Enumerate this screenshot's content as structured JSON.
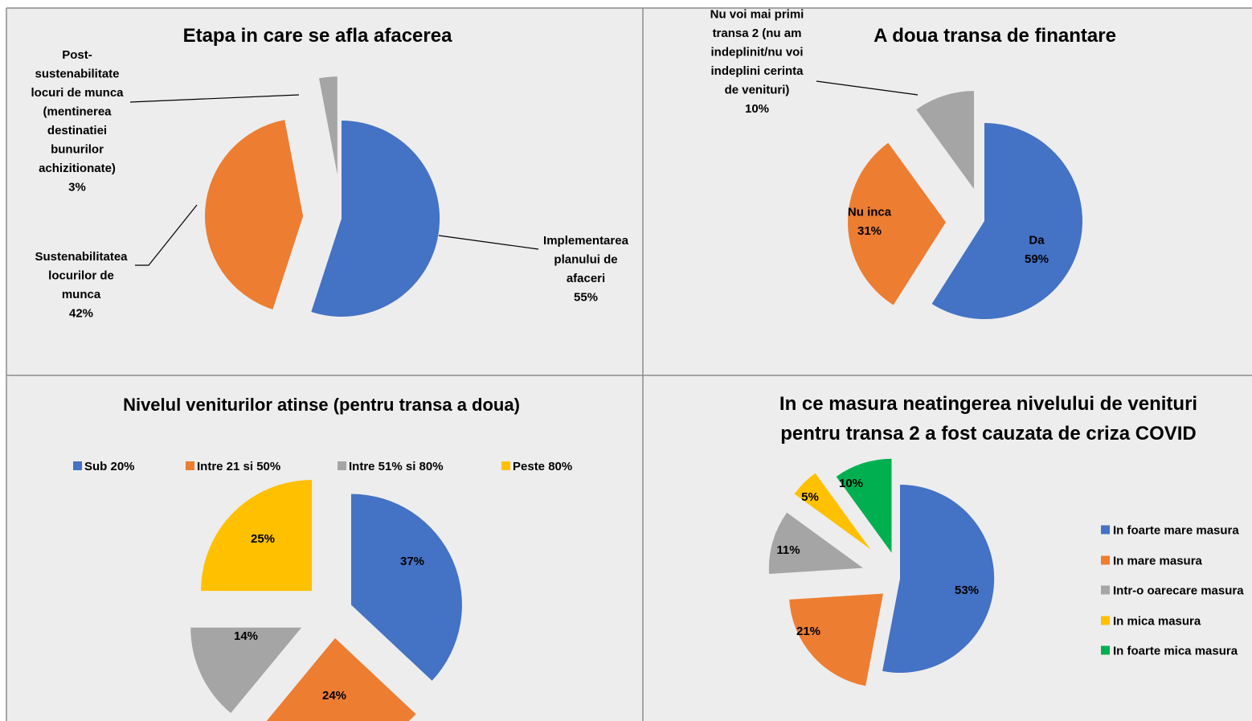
{
  "colors": {
    "blue": "#4472C4",
    "orange": "#ED7D31",
    "gray": "#A5A5A5",
    "yellow": "#FFC000",
    "green": "#00B050",
    "panel_bg": "#EDEDED",
    "border": "#8C8C8C"
  },
  "chart_data": [
    {
      "type": "pie",
      "title": "Etapa in care se afla afacerea",
      "slices": [
        {
          "label": [
            "Implementarea",
            "planului de",
            "afaceri",
            "55%"
          ],
          "value": 55,
          "color": "#4472C4"
        },
        {
          "label": [
            "Sustenabilitatea",
            "locurilor de",
            "munca",
            "42%"
          ],
          "value": 42,
          "color": "#ED7D31"
        },
        {
          "label": [
            "Post-",
            "sustenabilitate",
            "locuri de munca",
            "(mentinerea",
            "destinatiei",
            "bunurilor",
            "achizitionate)",
            "3%"
          ],
          "value": 3,
          "color": "#A5A5A5"
        }
      ]
    },
    {
      "type": "pie",
      "title": "A doua transa de finantare",
      "slices": [
        {
          "label": [
            "Da",
            "59%"
          ],
          "value": 59,
          "color": "#4472C4"
        },
        {
          "label": [
            "Nu inca",
            "31%"
          ],
          "value": 31,
          "color": "#ED7D31"
        },
        {
          "label": [
            "Nu voi mai primi",
            "transa 2 (nu am",
            "indeplinit/nu voi",
            "indeplini cerinta",
            "de venituri)",
            "10%"
          ],
          "value": 10,
          "color": "#A5A5A5"
        }
      ]
    },
    {
      "type": "pie",
      "title": "Nivelul veniturilor atinse (pentru transa a doua)",
      "legend": [
        "Sub 20%",
        "Intre 21 si 50%",
        "Intre 51% si 80%",
        "Peste 80%"
      ],
      "legend_position": "top",
      "slices": [
        {
          "label": [
            "37%"
          ],
          "value": 37,
          "color": "#4472C4"
        },
        {
          "label": [
            "24%"
          ],
          "value": 24,
          "color": "#ED7D31"
        },
        {
          "label": [
            "14%"
          ],
          "value": 14,
          "color": "#A5A5A5"
        },
        {
          "label": [
            "25%"
          ],
          "value": 25,
          "color": "#FFC000"
        }
      ]
    },
    {
      "type": "pie",
      "title": [
        "In ce masura neatingerea nivelului de venituri",
        "pentru transa 2 a fost cauzata de criza COVID"
      ],
      "legend": [
        "In foarte mare masura",
        "In mare masura",
        "Intr-o oarecare masura",
        "In mica masura",
        "In foarte mica masura"
      ],
      "legend_position": "right",
      "slices": [
        {
          "label": [
            "53%"
          ],
          "value": 53,
          "color": "#4472C4"
        },
        {
          "label": [
            "21%"
          ],
          "value": 21,
          "color": "#ED7D31"
        },
        {
          "label": [
            "11%"
          ],
          "value": 11,
          "color": "#A5A5A5"
        },
        {
          "label": [
            "5%"
          ],
          "value": 5,
          "color": "#FFC000"
        },
        {
          "label": [
            "10%"
          ],
          "value": 10,
          "color": "#00B050"
        }
      ]
    }
  ]
}
